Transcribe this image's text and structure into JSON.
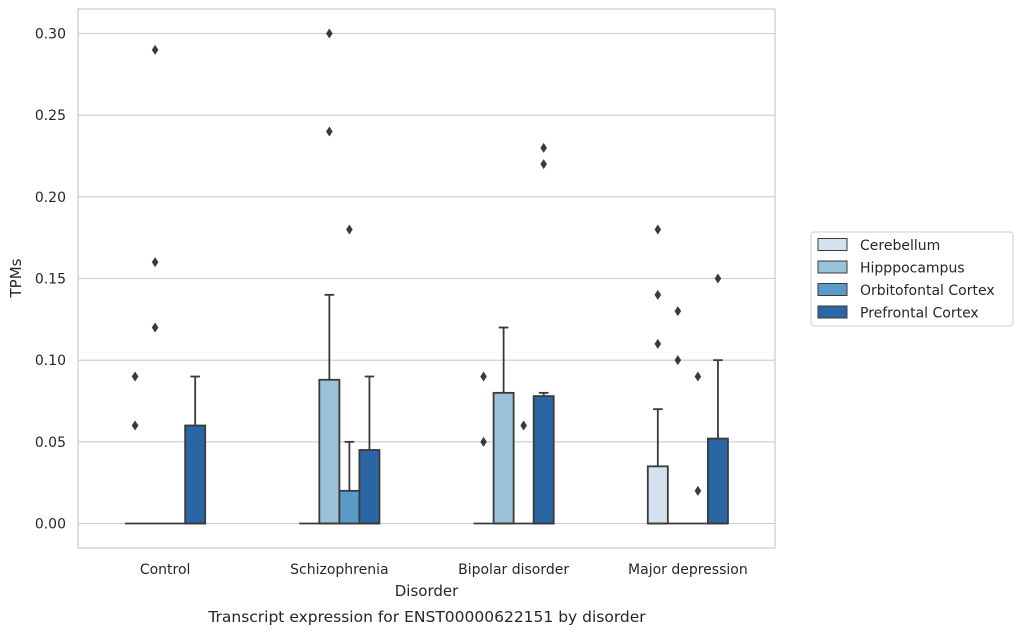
{
  "chart_data": {
    "type": "box",
    "caption": "Transcript expression for ENST00000622151 by disorder",
    "xlabel": "Disorder",
    "ylabel": "TPMs",
    "ylim": [
      -0.015,
      0.315
    ],
    "yticks": [
      0.0,
      0.05,
      0.1,
      0.15,
      0.2,
      0.25,
      0.3
    ],
    "ytick_labels": [
      "0.00",
      "0.05",
      "0.10",
      "0.15",
      "0.20",
      "0.25",
      "0.30"
    ],
    "grid": "horizontal",
    "legend_position": "right",
    "categories": [
      "Control",
      "Schizophrenia",
      "Bipolar disorder",
      "Major depression"
    ],
    "series": [
      {
        "name": "Cerebellum",
        "color": "#d4e2f0",
        "boxes": [
          {
            "q1": 0,
            "median": 0,
            "q3": 0,
            "whisker_low": 0,
            "whisker_high": 0,
            "outliers": [
              0.06,
              0.09
            ]
          },
          {
            "q1": 0,
            "median": 0,
            "q3": 0,
            "whisker_low": 0,
            "whisker_high": 0,
            "outliers": []
          },
          {
            "q1": 0,
            "median": 0,
            "q3": 0,
            "whisker_low": 0,
            "whisker_high": 0,
            "outliers": [
              0.05,
              0.09
            ]
          },
          {
            "q1": 0,
            "median": 0,
            "q3": 0.035,
            "whisker_low": 0,
            "whisker_high": 0.07,
            "outliers": [
              0.11,
              0.14,
              0.18
            ]
          }
        ]
      },
      {
        "name": "Hipppocampus",
        "color": "#9ac2d9",
        "boxes": [
          {
            "q1": 0,
            "median": 0,
            "q3": 0,
            "whisker_low": 0,
            "whisker_high": 0,
            "outliers": [
              0.12,
              0.16,
              0.29
            ]
          },
          {
            "q1": 0,
            "median": 0,
            "q3": 0.088,
            "whisker_low": 0,
            "whisker_high": 0.14,
            "outliers": [
              0.24,
              0.3
            ]
          },
          {
            "q1": 0,
            "median": 0,
            "q3": 0.08,
            "whisker_low": 0,
            "whisker_high": 0.12,
            "outliers": []
          },
          {
            "q1": 0,
            "median": 0,
            "q3": 0,
            "whisker_low": 0,
            "whisker_high": 0,
            "outliers": [
              0.1,
              0.13
            ]
          }
        ]
      },
      {
        "name": "Orbitofontal Cortex",
        "color": "#5a9ac6",
        "boxes": [
          {
            "q1": 0,
            "median": 0,
            "q3": 0,
            "whisker_low": 0,
            "whisker_high": 0,
            "outliers": []
          },
          {
            "q1": 0,
            "median": 0,
            "q3": 0.02,
            "whisker_low": 0,
            "whisker_high": 0.05,
            "outliers": [
              0.18
            ]
          },
          {
            "q1": 0,
            "median": 0,
            "q3": 0,
            "whisker_low": 0,
            "whisker_high": 0,
            "outliers": [
              0.06
            ]
          },
          {
            "q1": 0,
            "median": 0,
            "q3": 0,
            "whisker_low": 0,
            "whisker_high": 0,
            "outliers": [
              0.02,
              0.09
            ]
          }
        ]
      },
      {
        "name": "Prefrontal Cortex",
        "color": "#2a65a4",
        "boxes": [
          {
            "q1": 0,
            "median": 0,
            "q3": 0.06,
            "whisker_low": 0,
            "whisker_high": 0.09,
            "outliers": []
          },
          {
            "q1": 0,
            "median": 0,
            "q3": 0.045,
            "whisker_low": 0,
            "whisker_high": 0.09,
            "outliers": []
          },
          {
            "q1": 0,
            "median": 0,
            "q3": 0.078,
            "whisker_low": 0,
            "whisker_high": 0.08,
            "outliers": [
              0.22,
              0.23
            ]
          },
          {
            "q1": 0,
            "median": 0,
            "q3": 0.052,
            "whisker_low": 0,
            "whisker_high": 0.1,
            "outliers": [
              0.15
            ]
          }
        ]
      }
    ]
  }
}
